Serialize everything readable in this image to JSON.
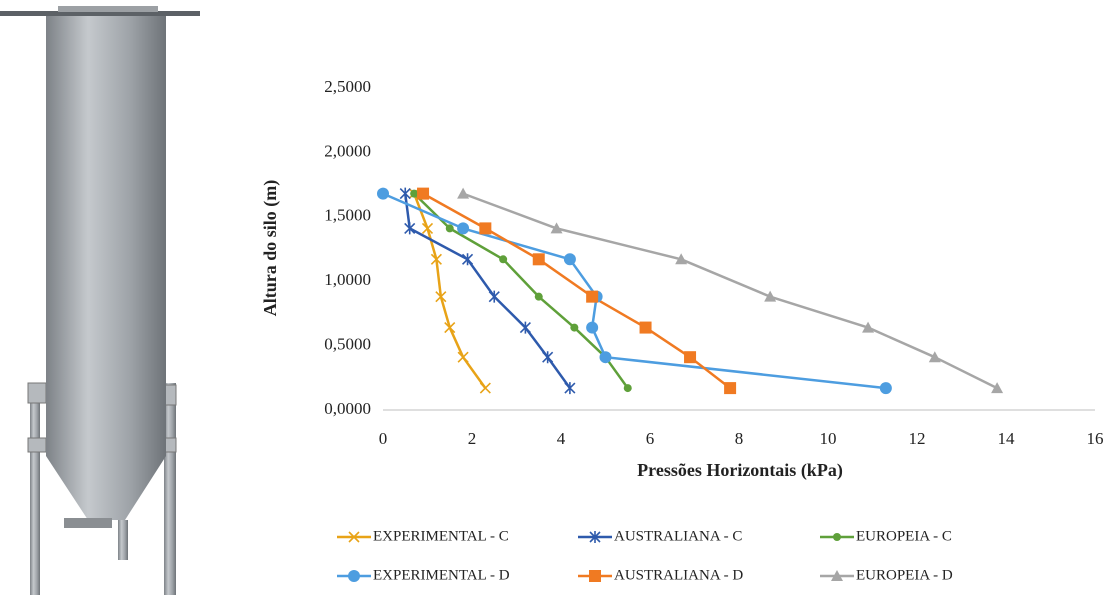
{
  "chart_data": {
    "type": "line",
    "xlabel": "Pressões Horizontais (kPa)",
    "ylabel": "Altura do silo (m)",
    "xlim": [
      0,
      16
    ],
    "xticks": [
      0,
      2,
      4,
      6,
      8,
      10,
      12,
      14,
      16
    ],
    "ylim": [
      0,
      2.5
    ],
    "yticks": [
      {
        "value": 0,
        "label": "0,0000"
      },
      {
        "value": 0.5,
        "label": "0,5000"
      },
      {
        "value": 1,
        "label": "1,0000"
      },
      {
        "value": 1.5,
        "label": "1,5000"
      },
      {
        "value": 2,
        "label": "2,0000"
      },
      {
        "value": 2.5,
        "label": "2,5000"
      }
    ],
    "grid": false,
    "legend": "bottom",
    "series": [
      {
        "name": "EXPERIMENTAL - C",
        "color": "#e8a317",
        "marker": "x",
        "x": [
          0.7,
          1.0,
          1.2,
          1.3,
          1.5,
          1.8,
          2.3
        ],
        "values": [
          1.68,
          1.41,
          1.17,
          0.88,
          0.64,
          0.41,
          0.17
        ]
      },
      {
        "name": "AUSTRALIANA - C",
        "color": "#2e5aac",
        "marker": "asterisk",
        "x": [
          0.5,
          0.6,
          1.9,
          2.5,
          3.2,
          3.7,
          4.2
        ],
        "values": [
          1.68,
          1.41,
          1.17,
          0.88,
          0.64,
          0.41,
          0.17
        ]
      },
      {
        "name": "EUROPEIA - C",
        "color": "#5fa03a",
        "marker": "dot",
        "x": [
          0.7,
          1.5,
          2.7,
          3.5,
          4.3,
          5.0,
          5.5
        ],
        "values": [
          1.68,
          1.41,
          1.17,
          0.88,
          0.64,
          0.41,
          0.17
        ]
      },
      {
        "name": "EXPERIMENTAL - D",
        "color": "#4d9de0",
        "marker": "circle",
        "x": [
          0,
          1.8,
          4.2,
          4.8,
          4.7,
          5.0,
          11.3
        ],
        "values": [
          1.68,
          1.41,
          1.17,
          0.88,
          0.64,
          0.41,
          0.17
        ]
      },
      {
        "name": "AUSTRALIANA - D",
        "color": "#f07a22",
        "marker": "square",
        "x": [
          0.9,
          2.3,
          3.5,
          4.7,
          5.9,
          6.9,
          7.8
        ],
        "values": [
          1.68,
          1.41,
          1.17,
          0.88,
          0.64,
          0.41,
          0.17
        ]
      },
      {
        "name": "EUROPEIA - D",
        "color": "#a6a6a6",
        "marker": "triangle",
        "x": [
          1.8,
          3.9,
          6.7,
          8.7,
          10.9,
          12.4,
          13.8
        ],
        "values": [
          1.68,
          1.41,
          1.17,
          0.88,
          0.64,
          0.41,
          0.17
        ]
      }
    ]
  }
}
